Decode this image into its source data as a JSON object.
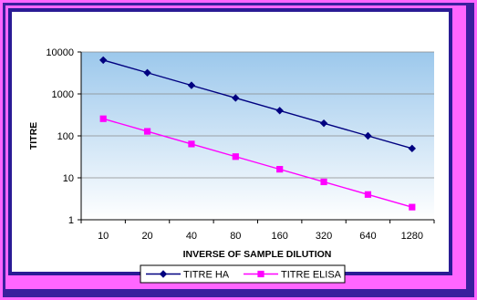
{
  "chart_data": {
    "type": "line",
    "title": "",
    "xlabel": "INVERSE OF SAMPLE DILUTION",
    "ylabel": "TITRE",
    "yscale": "log",
    "ylim": [
      1,
      10000
    ],
    "yticks": [
      "1",
      "10",
      "100",
      "1000",
      "10000"
    ],
    "categories": [
      "10",
      "20",
      "40",
      "80",
      "160",
      "320",
      "640",
      "1280"
    ],
    "grid": "horizontal",
    "legend_position": "bottom",
    "series": [
      {
        "name": "TITRE HA",
        "color": "#000080",
        "marker": "diamond",
        "values": [
          6400,
          3200,
          1600,
          800,
          400,
          200,
          100,
          50
        ]
      },
      {
        "name": "TITRE ELISA",
        "color": "#ff00ff",
        "marker": "square",
        "values": [
          256,
          128,
          64,
          32,
          16,
          8,
          4,
          2
        ]
      }
    ]
  }
}
